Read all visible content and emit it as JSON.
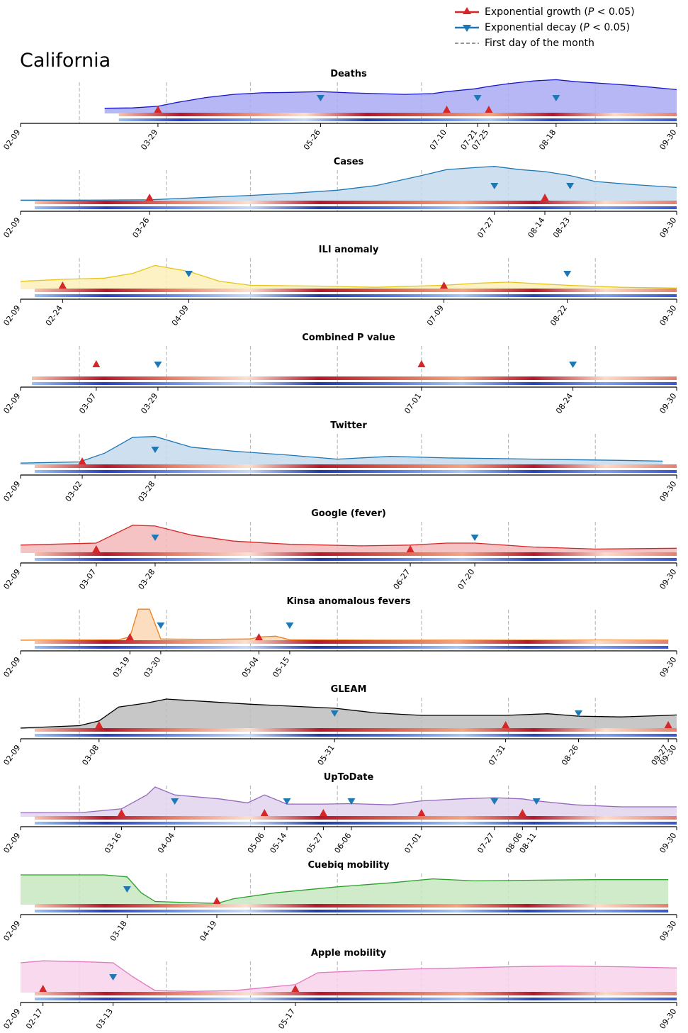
{
  "region": "California",
  "legend": {
    "growth": "Exponential growth",
    "decay": "Exponential decay",
    "month": "First day of the month",
    "p_text": "P",
    "p_cond": "< 0.05"
  },
  "colors": {
    "growth": "#d62728",
    "decay": "#1f77b4",
    "month_line": "#bbbbbb"
  },
  "chart_data": {
    "type": "area",
    "x_range": [
      "2020-02-09",
      "2020-09-30"
    ],
    "month_starts": [
      "03-01",
      "04-01",
      "05-01",
      "06-01",
      "07-01",
      "08-01",
      "09-01"
    ],
    "panels": [
      {
        "title": "Deaths",
        "stroke": "#1414cc",
        "fill": "#aaaaf5",
        "start": "03-10",
        "end": "09-30",
        "ymax": 100,
        "points": [
          [
            "03-10",
            13
          ],
          [
            "03-20",
            14
          ],
          [
            "03-29",
            18
          ],
          [
            "04-05",
            28
          ],
          [
            "04-15",
            40
          ],
          [
            "04-25",
            48
          ],
          [
            "05-05",
            52
          ],
          [
            "05-15",
            53
          ],
          [
            "05-26",
            55
          ],
          [
            "06-05",
            52
          ],
          [
            "06-15",
            50
          ],
          [
            "06-25",
            48
          ],
          [
            "07-05",
            50
          ],
          [
            "07-10",
            55
          ],
          [
            "07-20",
            62
          ],
          [
            "07-25",
            68
          ],
          [
            "08-01",
            75
          ],
          [
            "08-10",
            82
          ],
          [
            "08-18",
            85
          ],
          [
            "08-25",
            80
          ],
          [
            "09-05",
            75
          ],
          [
            "09-15",
            70
          ],
          [
            "09-30",
            60
          ]
        ],
        "gaps": [],
        "growth": [
          "03-29",
          "07-10",
          "07-25"
        ],
        "decay": [
          "05-26",
          "07-21",
          "08-18"
        ],
        "ticks": [
          "02-09",
          "03-29",
          "05-26",
          "07-10",
          "07-21",
          "07-25",
          "08-18",
          "09-30"
        ]
      },
      {
        "title": "Cases",
        "stroke": "#1f77b4",
        "fill": "#c5dbec",
        "start": "02-09",
        "end": "09-30",
        "ymax": 100,
        "points": [
          [
            "02-09",
            3
          ],
          [
            "03-01",
            3
          ],
          [
            "03-26",
            4
          ],
          [
            "04-15",
            10
          ],
          [
            "05-01",
            15
          ],
          [
            "05-15",
            20
          ],
          [
            "06-01",
            28
          ],
          [
            "06-15",
            40
          ],
          [
            "07-01",
            65
          ],
          [
            "07-10",
            80
          ],
          [
            "07-20",
            85
          ],
          [
            "07-27",
            88
          ],
          [
            "08-05",
            80
          ],
          [
            "08-14",
            75
          ],
          [
            "08-23",
            65
          ],
          [
            "09-01",
            50
          ],
          [
            "09-15",
            42
          ],
          [
            "09-30",
            35
          ]
        ],
        "gaps": [],
        "growth": [
          "03-26",
          "08-14"
        ],
        "decay": [
          "07-27",
          "08-23"
        ],
        "ticks": [
          "02-09",
          "03-26",
          "07-27",
          "08-14",
          "08-23",
          "09-30"
        ]
      },
      {
        "title": "ILI anomaly",
        "stroke": "#e8c31a",
        "fill": "#fbf0b8",
        "start": "02-09",
        "end": "09-30",
        "ymax": 100,
        "points": [
          [
            "02-09",
            20
          ],
          [
            "02-24",
            25
          ],
          [
            "03-10",
            28
          ],
          [
            "03-20",
            40
          ],
          [
            "03-28",
            60
          ],
          [
            "04-09",
            45
          ],
          [
            "04-20",
            20
          ],
          [
            "05-01",
            10
          ],
          [
            "05-25",
            8
          ],
          [
            "06-15",
            5
          ],
          [
            "07-09",
            10
          ],
          [
            "07-20",
            15
          ],
          [
            "08-01",
            18
          ],
          [
            "08-22",
            10
          ],
          [
            "09-10",
            5
          ],
          [
            "09-30",
            3
          ]
        ],
        "gaps": [
          [
            "05-26",
            "06-15"
          ]
        ],
        "growth": [
          "02-24",
          "07-09"
        ],
        "decay": [
          "04-09",
          "08-22"
        ],
        "ticks": [
          "02-09",
          "02-24",
          "04-09",
          "07-09",
          "08-22",
          "09-30"
        ]
      },
      {
        "title": "Combined P value",
        "stroke": "none",
        "fill": "none",
        "start": "02-09",
        "end": "09-30",
        "ymax": 100,
        "points": [],
        "gaps": [],
        "growth": [
          "03-07",
          "07-01"
        ],
        "decay": [
          "03-29",
          "08-24"
        ],
        "ticks": [
          "02-09",
          "03-07",
          "03-29",
          "07-01",
          "08-24",
          "09-30"
        ]
      },
      {
        "title": "Twitter",
        "stroke": "#1f77b4",
        "fill": "#c5dbec",
        "start": "02-09",
        "end": "09-30",
        "ymax": 100,
        "points": [
          [
            "02-09",
            5
          ],
          [
            "03-01",
            8
          ],
          [
            "03-10",
            30
          ],
          [
            "03-20",
            70
          ],
          [
            "03-28",
            72
          ],
          [
            "04-10",
            45
          ],
          [
            "04-25",
            35
          ],
          [
            "05-15",
            25
          ],
          [
            "06-01",
            15
          ],
          [
            "06-20",
            22
          ],
          [
            "07-10",
            18
          ],
          [
            "08-01",
            16
          ],
          [
            "08-20",
            14
          ],
          [
            "09-10",
            12
          ],
          [
            "09-25",
            10
          ]
        ],
        "gaps": [],
        "growth": [
          "03-02"
        ],
        "decay": [
          "03-28"
        ],
        "ticks": [
          "02-09",
          "03-02",
          "03-28",
          "09-30"
        ]
      },
      {
        "title": "Google (fever)",
        "stroke": "#d62728",
        "fill": "#f3b9b9",
        "start": "02-09",
        "end": "09-30",
        "ymax": 100,
        "points": [
          [
            "02-09",
            20
          ],
          [
            "03-07",
            25
          ],
          [
            "03-20",
            70
          ],
          [
            "03-28",
            68
          ],
          [
            "04-10",
            45
          ],
          [
            "04-25",
            30
          ],
          [
            "05-15",
            22
          ],
          [
            "06-10",
            18
          ],
          [
            "06-27",
            20
          ],
          [
            "07-10",
            25
          ],
          [
            "07-20",
            25
          ],
          [
            "08-10",
            15
          ],
          [
            "09-01",
            10
          ],
          [
            "09-30",
            12
          ]
        ],
        "gaps": [],
        "growth": [
          "03-07",
          "06-27"
        ],
        "decay": [
          "03-28",
          "07-20"
        ],
        "ticks": [
          "02-09",
          "03-07",
          "03-28",
          "06-27",
          "07-20",
          "09-30"
        ]
      },
      {
        "title": "Kinsa anomalous fevers",
        "stroke": "#f07f1a",
        "fill": "#fdd7b4",
        "start": "02-09",
        "end": "09-27",
        "ymax": 100,
        "points": [
          [
            "02-09",
            2
          ],
          [
            "03-15",
            3
          ],
          [
            "03-19",
            10
          ],
          [
            "03-22",
            80
          ],
          [
            "03-26",
            80
          ],
          [
            "03-30",
            5
          ],
          [
            "04-15",
            4
          ],
          [
            "05-01",
            5
          ],
          [
            "05-04",
            10
          ],
          [
            "05-10",
            12
          ],
          [
            "05-15",
            3
          ],
          [
            "06-15",
            2
          ],
          [
            "07-30",
            2
          ],
          [
            "09-27",
            2
          ]
        ],
        "gaps": [],
        "growth": [
          "03-19",
          "05-04"
        ],
        "decay": [
          "03-30",
          "05-15"
        ],
        "ticks": [
          "02-09",
          "03-19",
          "03-30",
          "05-04",
          "05-15",
          "09-30"
        ]
      },
      {
        "title": "GLEAM",
        "stroke": "#000000",
        "fill": "#bdbdbd",
        "start": "02-09",
        "end": "09-30",
        "ymax": 100,
        "points": [
          [
            "02-09",
            2
          ],
          [
            "03-01",
            8
          ],
          [
            "03-08",
            20
          ],
          [
            "03-15",
            55
          ],
          [
            "03-25",
            65
          ],
          [
            "04-01",
            75
          ],
          [
            "05-01",
            62
          ],
          [
            "05-31",
            52
          ],
          [
            "06-15",
            40
          ],
          [
            "07-01",
            34
          ],
          [
            "07-31",
            34
          ],
          [
            "08-15",
            38
          ],
          [
            "08-26",
            32
          ],
          [
            "09-10",
            30
          ],
          [
            "09-27",
            34
          ],
          [
            "09-30",
            35
          ]
        ],
        "gaps": [],
        "growth": [
          "03-08",
          "07-31",
          "09-27"
        ],
        "decay": [
          "05-31",
          "08-26"
        ],
        "ticks": [
          "02-09",
          "03-08",
          "05-31",
          "07-31",
          "08-26",
          "09-27",
          "09-30"
        ]
      },
      {
        "title": "UpToDate",
        "stroke": "#9467bd",
        "fill": "#e0d4ec",
        "start": "02-09",
        "end": "09-30",
        "ymax": 100,
        "points": [
          [
            "02-09",
            10
          ],
          [
            "03-01",
            10
          ],
          [
            "03-16",
            20
          ],
          [
            "03-25",
            55
          ],
          [
            "03-28",
            75
          ],
          [
            "04-04",
            55
          ],
          [
            "04-20",
            45
          ],
          [
            "04-30",
            35
          ],
          [
            "05-06",
            55
          ],
          [
            "05-14",
            32
          ],
          [
            "05-27",
            32
          ],
          [
            "06-06",
            33
          ],
          [
            "06-20",
            30
          ],
          [
            "07-01",
            40
          ],
          [
            "07-15",
            45
          ],
          [
            "07-27",
            48
          ],
          [
            "08-06",
            45
          ],
          [
            "08-11",
            40
          ],
          [
            "08-25",
            30
          ],
          [
            "09-10",
            25
          ],
          [
            "09-30",
            25
          ]
        ],
        "gaps": [],
        "growth": [
          "03-16",
          "05-06",
          "05-27",
          "07-01",
          "08-06"
        ],
        "decay": [
          "04-04",
          "05-14",
          "06-06",
          "07-27",
          "08-11"
        ],
        "ticks": [
          "02-09",
          "03-16",
          "04-04",
          "05-06",
          "05-14",
          "05-27",
          "06-06",
          "07-01",
          "07-27",
          "08-06",
          "08-11",
          "09-30"
        ]
      },
      {
        "title": "Cuebiq mobility",
        "stroke": "#2ca02c",
        "fill": "#c7e7c0",
        "start": "02-09",
        "end": "09-27",
        "ymax": 100,
        "points": [
          [
            "02-09",
            75
          ],
          [
            "03-10",
            75
          ],
          [
            "03-18",
            70
          ],
          [
            "03-23",
            30
          ],
          [
            "03-28",
            8
          ],
          [
            "04-10",
            5
          ],
          [
            "04-19",
            3
          ],
          [
            "04-25",
            15
          ],
          [
            "05-10",
            30
          ],
          [
            "06-01",
            45
          ],
          [
            "06-20",
            55
          ],
          [
            "07-05",
            65
          ],
          [
            "07-20",
            60
          ],
          [
            "08-15",
            62
          ],
          [
            "09-01",
            63
          ],
          [
            "09-27",
            63
          ]
        ],
        "gaps": [],
        "growth": [
          "04-19"
        ],
        "decay": [
          "03-18"
        ],
        "ticks": [
          "02-09",
          "03-18",
          "04-19",
          "09-30"
        ]
      },
      {
        "title": "Apple mobility",
        "stroke": "#e377c2",
        "fill": "#f7d2ea",
        "start": "02-09",
        "end": "09-30",
        "ymax": 100,
        "points": [
          [
            "02-09",
            75
          ],
          [
            "02-17",
            80
          ],
          [
            "03-01",
            78
          ],
          [
            "03-13",
            75
          ],
          [
            "03-20",
            40
          ],
          [
            "03-28",
            5
          ],
          [
            "04-10",
            3
          ],
          [
            "04-25",
            5
          ],
          [
            "05-17",
            20
          ],
          [
            "05-25",
            50
          ],
          [
            "06-10",
            55
          ],
          [
            "07-01",
            60
          ],
          [
            "07-15",
            62
          ],
          [
            "08-01",
            65
          ],
          [
            "08-20",
            67
          ],
          [
            "09-10",
            65
          ],
          [
            "09-30",
            62
          ]
        ],
        "gaps": [
          [
            "05-14",
            "05-17"
          ]
        ],
        "growth": [
          "02-17",
          "05-17"
        ],
        "decay": [
          "03-13"
        ],
        "ticks": [
          "02-09",
          "02-17",
          "03-13",
          "05-17",
          "09-30"
        ]
      }
    ]
  }
}
